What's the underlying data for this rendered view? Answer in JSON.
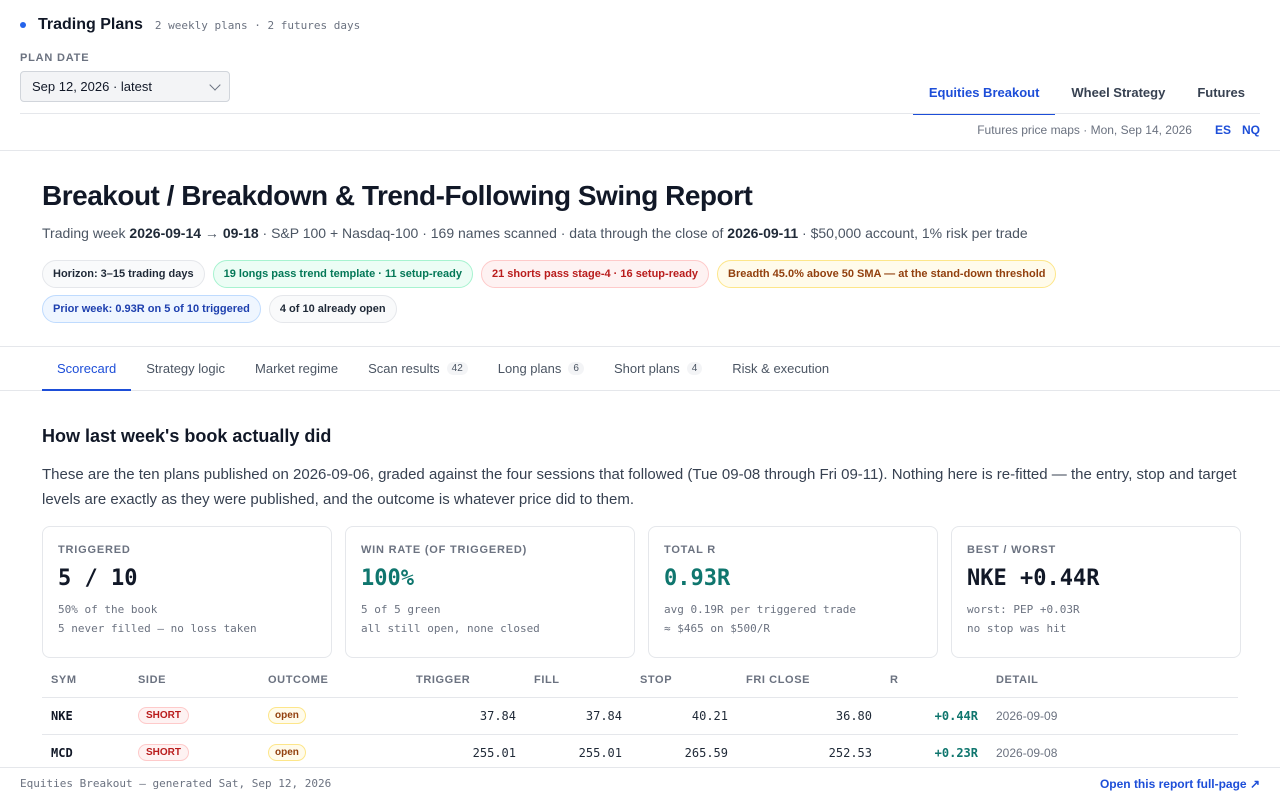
{
  "header": {
    "title": "Trading Plans",
    "subtitle": "2 weekly plans · 2 futures days",
    "plan_date_label": "PLAN DATE",
    "plan_date_value": "Sep 12, 2026 · latest",
    "tabs": [
      {
        "label": "Equities Breakout",
        "active": true
      },
      {
        "label": "Wheel Strategy",
        "active": false
      },
      {
        "label": "Futures",
        "active": false
      }
    ],
    "futures_text": "Futures price maps · Mon, Sep 14, 2026",
    "futures_links": [
      "ES",
      "NQ"
    ]
  },
  "report": {
    "title": "Breakout / Breakdown & Trend-Following Swing Report",
    "subtitle": {
      "p1": "Trading week ",
      "week_start": "2026-09-14",
      "arrow": " → ",
      "week_end": "09-18",
      "p2": " · S&P 100 + Nasdaq-100 · 169 names scanned · data through the close of ",
      "data_date": "2026-09-11",
      "p3": " · $50,000 account, 1% risk per trade"
    },
    "pills": [
      {
        "text": "Horizon: 3–15 trading days",
        "style": "gray"
      },
      {
        "text": "19 longs pass trend template · 11 setup-ready",
        "style": "green"
      },
      {
        "text": "21 shorts pass stage-4 · 16 setup-ready",
        "style": "red"
      },
      {
        "text": "Breadth 45.0% above 50 SMA — at the stand-down threshold",
        "style": "yellow"
      },
      {
        "text": "Prior week: 0.93R on 5 of 10 triggered",
        "style": "blue"
      },
      {
        "text": "4 of 10 already open",
        "style": "gray"
      }
    ]
  },
  "subtabs": [
    {
      "label": "Scorecard",
      "active": true,
      "badge": ""
    },
    {
      "label": "Strategy logic",
      "active": false,
      "badge": ""
    },
    {
      "label": "Market regime",
      "active": false,
      "badge": ""
    },
    {
      "label": "Scan results",
      "active": false,
      "badge": "42"
    },
    {
      "label": "Long plans",
      "active": false,
      "badge": "6"
    },
    {
      "label": "Short plans",
      "active": false,
      "badge": "4"
    },
    {
      "label": "Risk & execution",
      "active": false,
      "badge": ""
    }
  ],
  "scorecard": {
    "title": "How last week's book actually did",
    "paragraph": "These are the ten plans published on 2026-09-06, graded against the four sessions that followed (Tue 09-08 through Fri 09-11). Nothing here is re-fitted — the entry, stop and target levels are exactly as they were published, and the outcome is whatever price did to them.",
    "cards": [
      {
        "label": "TRIGGERED",
        "value": "5 / 10",
        "green": false,
        "note1": "50% of the book",
        "note2": "5 never filled — no loss taken"
      },
      {
        "label": "WIN RATE (OF TRIGGERED)",
        "value": "100%",
        "green": true,
        "note1": "5 of 5 green",
        "note2": "all still open, none closed"
      },
      {
        "label": "TOTAL R",
        "value": "0.93R",
        "green": true,
        "note1": "avg 0.19R per triggered trade",
        "note2": "≈ $465 on $500/R"
      },
      {
        "label": "BEST / WORST",
        "value": "NKE +0.44R",
        "green": false,
        "note1": "worst: PEP +0.03R",
        "note2": "no stop was hit"
      }
    ],
    "table": {
      "columns": [
        "SYM",
        "SIDE",
        "OUTCOME",
        "TRIGGER",
        "FILL",
        "STOP",
        "FRI CLOSE",
        "R",
        "DETAIL"
      ],
      "rows": [
        {
          "sym": "NKE",
          "side": "SHORT",
          "outcome": "open",
          "trigger": "37.84",
          "fill": "37.84",
          "stop": "40.21",
          "fri_close": "36.80",
          "r": "+0.44R",
          "detail": "2026-09-09"
        },
        {
          "sym": "MCD",
          "side": "SHORT",
          "outcome": "open",
          "trigger": "255.01",
          "fill": "255.01",
          "stop": "265.59",
          "fri_close": "252.53",
          "r": "+0.23R",
          "detail": "2026-09-08"
        }
      ]
    }
  },
  "footer": {
    "left": "Equities Breakout — generated Sat, Sep 12, 2026",
    "right": "Open this report full-page ↗"
  }
}
